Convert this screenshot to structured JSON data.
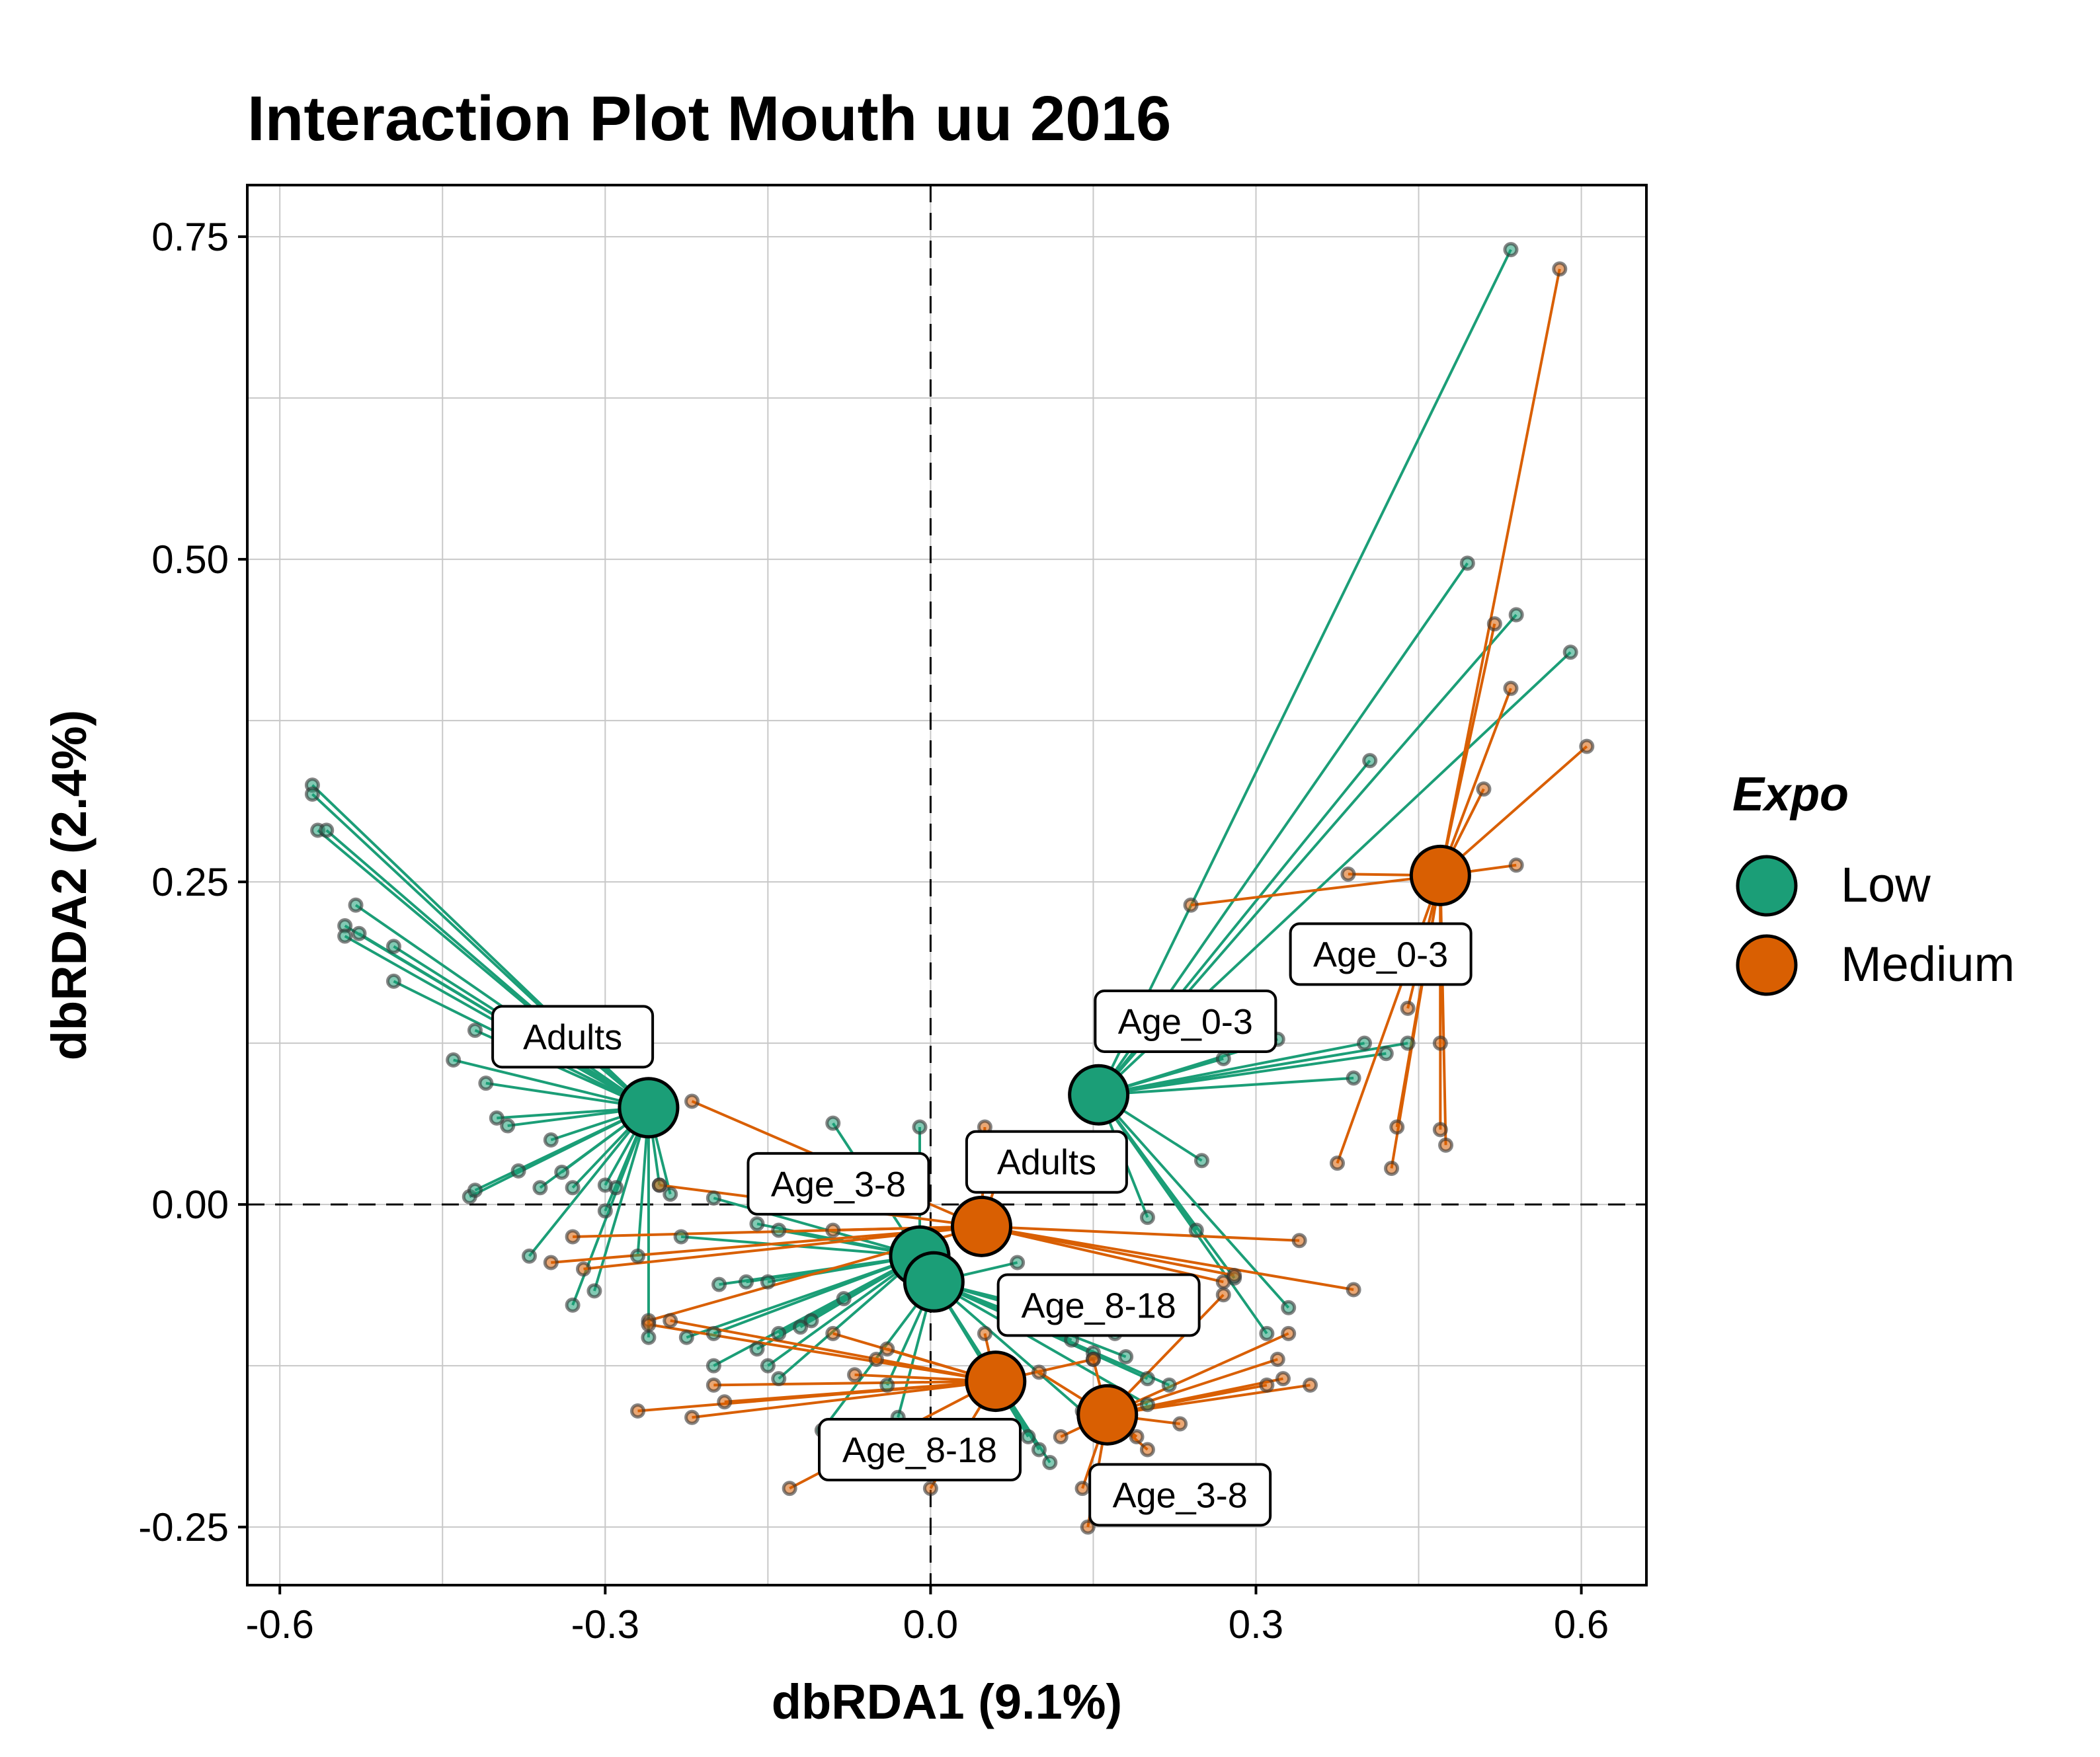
{
  "chart_data": {
    "type": "scatter",
    "title": "Interaction Plot Mouth uu 2016",
    "xlabel": "dbRDA1 (9.1%)",
    "ylabel": "dbRDA2 (2.4%)",
    "xlim": [
      -0.63,
      0.66
    ],
    "ylim": [
      -0.295,
      0.79
    ],
    "x_ticks": [
      -0.6,
      -0.3,
      0.0,
      0.3,
      0.6
    ],
    "x_tick_labels": [
      "-0.6",
      "-0.3",
      "0.0",
      "0.3",
      "0.6"
    ],
    "y_ticks": [
      -0.25,
      0.0,
      0.25,
      0.5,
      0.75
    ],
    "y_tick_labels": [
      "-0.25",
      "0.00",
      "0.25",
      "0.50",
      "0.75"
    ],
    "grid": true,
    "reference_lines": {
      "x": 0,
      "y": 0,
      "style": "dashed"
    },
    "legend": {
      "title": "Expo",
      "placement": "right",
      "entries": [
        {
          "label": "Low",
          "color": "#1b9e77"
        },
        {
          "label": "Medium",
          "color": "#d95f02"
        }
      ]
    },
    "series": [
      {
        "name": "Low",
        "color": "#1b9e77",
        "groups": [
          {
            "label": "Adults",
            "centroid": [
              -0.26,
              0.075
            ],
            "points": [
              [
                -0.57,
                0.325
              ],
              [
                -0.57,
                0.318
              ],
              [
                -0.565,
                0.29
              ],
              [
                -0.557,
                0.29
              ],
              [
                -0.53,
                0.232
              ],
              [
                -0.54,
                0.216
              ],
              [
                -0.54,
                0.208
              ],
              [
                -0.527,
                0.21
              ],
              [
                -0.495,
                0.2
              ],
              [
                -0.495,
                0.173
              ],
              [
                -0.42,
                0.135
              ],
              [
                -0.44,
                0.112
              ],
              [
                -0.41,
                0.094
              ],
              [
                -0.4,
                0.067
              ],
              [
                -0.39,
                0.061
              ],
              [
                -0.38,
                0.026
              ],
              [
                -0.36,
                0.013
              ],
              [
                -0.425,
                0.006
              ],
              [
                -0.42,
                0.011
              ],
              [
                -0.35,
                0.05
              ],
              [
                -0.33,
                0.013
              ],
              [
                -0.29,
                0.013
              ],
              [
                -0.3,
                0.015
              ],
              [
                -0.25,
                0.015
              ],
              [
                -0.24,
                0.008
              ],
              [
                -0.37,
                -0.04
              ],
              [
                -0.27,
                -0.04
              ],
              [
                -0.33,
                -0.078
              ],
              [
                -0.31,
                -0.067
              ],
              [
                -0.34,
                0.025
              ],
              [
                -0.3,
                -0.005
              ],
              [
                -0.26,
                -0.103
              ]
            ]
          },
          {
            "label": "Age_0-3",
            "centroid": [
              0.155,
              0.085
            ],
            "points": [
              [
                0.535,
                0.74
              ],
              [
                0.495,
                0.497
              ],
              [
                0.54,
                0.457
              ],
              [
                0.59,
                0.428
              ],
              [
                0.405,
                0.344
              ],
              [
                0.4,
                0.125
              ],
              [
                0.42,
                0.117
              ],
              [
                0.44,
                0.125
              ],
              [
                0.39,
                0.098
              ],
              [
                0.32,
                0.128
              ],
              [
                0.27,
                0.113
              ],
              [
                0.25,
                0.034
              ],
              [
                0.2,
                -0.01
              ],
              [
                0.245,
                -0.02
              ],
              [
                0.28,
                -0.057
              ],
              [
                0.31,
                -0.1
              ],
              [
                0.33,
                -0.08
              ]
            ]
          },
          {
            "label": "Age_3-8",
            "centroid": [
              -0.01,
              -0.04
            ],
            "points": [
              [
                -0.09,
                0.063
              ],
              [
                -0.01,
                0.06
              ],
              [
                -0.2,
                0.005
              ],
              [
                -0.23,
                -0.025
              ],
              [
                -0.16,
                -0.015
              ],
              [
                -0.14,
                -0.02
              ],
              [
                -0.195,
                -0.062
              ],
              [
                -0.17,
                -0.06
              ],
              [
                -0.15,
                -0.06
              ],
              [
                -0.11,
                -0.09
              ],
              [
                -0.12,
                -0.095
              ],
              [
                -0.14,
                -0.1
              ],
              [
                -0.16,
                -0.112
              ],
              [
                -0.15,
                -0.125
              ],
              [
                -0.14,
                -0.135
              ],
              [
                -0.08,
                -0.073
              ],
              [
                -0.2,
                -0.1
              ],
              [
                -0.225,
                -0.103
              ],
              [
                -0.2,
                -0.125
              ]
            ]
          },
          {
            "label": "Age_8-18",
            "centroid": [
              0.003,
              -0.06
            ],
            "points": [
              [
                0.08,
                -0.045
              ],
              [
                0.1,
                -0.08
              ],
              [
                0.13,
                -0.105
              ],
              [
                0.15,
                -0.115
              ],
              [
                0.2,
                -0.135
              ],
              [
                0.2,
                -0.155
              ],
              [
                0.22,
                -0.14
              ],
              [
                0.14,
                -0.16
              ],
              [
                0.1,
                -0.19
              ],
              [
                0.11,
                -0.2
              ],
              [
                0.09,
                -0.18
              ],
              [
                0.07,
                -0.15
              ],
              [
                -0.1,
                -0.175
              ],
              [
                -0.03,
                -0.165
              ],
              [
                -0.04,
                -0.14
              ],
              [
                0.17,
                -0.1
              ],
              [
                0.18,
                -0.118
              ]
            ]
          }
        ]
      },
      {
        "name": "Medium",
        "color": "#d95f02",
        "groups": [
          {
            "label": "Age_0-3",
            "centroid": [
              0.47,
              0.255
            ],
            "points": [
              [
                0.58,
                0.725
              ],
              [
                0.52,
                0.45
              ],
              [
                0.535,
                0.4
              ],
              [
                0.605,
                0.355
              ],
              [
                0.51,
                0.322
              ],
              [
                0.54,
                0.263
              ],
              [
                0.385,
                0.256
              ],
              [
                0.24,
                0.232
              ],
              [
                0.44,
                0.152
              ],
              [
                0.47,
                0.125
              ],
              [
                0.43,
                0.06
              ],
              [
                0.47,
                0.058
              ],
              [
                0.475,
                0.046
              ],
              [
                0.375,
                0.032
              ],
              [
                0.425,
                0.028
              ]
            ]
          },
          {
            "label": "Adults",
            "centroid": [
              0.047,
              -0.017
            ],
            "points": [
              [
                -0.22,
                0.08
              ],
              [
                -0.33,
                -0.025
              ],
              [
                -0.35,
                -0.045
              ],
              [
                -0.32,
                -0.05
              ],
              [
                -0.25,
                0.015
              ],
              [
                -0.26,
                -0.09
              ],
              [
                -0.09,
                -0.02
              ],
              [
                0.05,
                0.06
              ],
              [
                0.07,
                0.04
              ],
              [
                0.27,
                -0.06
              ],
              [
                0.39,
                -0.066
              ],
              [
                0.34,
                -0.028
              ],
              [
                0.28,
                -0.055
              ]
            ]
          },
          {
            "label": "Age_8-18",
            "centroid": [
              0.06,
              -0.137
            ],
            "points": [
              [
                -0.27,
                -0.16
              ],
              [
                -0.22,
                -0.165
              ],
              [
                -0.19,
                -0.153
              ],
              [
                -0.2,
                -0.14
              ],
              [
                -0.13,
                -0.22
              ],
              [
                -0.07,
                -0.132
              ],
              [
                -0.05,
                -0.12
              ],
              [
                -0.04,
                -0.112
              ],
              [
                0.0,
                -0.22
              ],
              [
                -0.09,
                -0.1
              ],
              [
                -0.24,
                -0.09
              ],
              [
                -0.26,
                -0.093
              ],
              [
                0.05,
                -0.1
              ],
              [
                0.15,
                -0.12
              ]
            ]
          },
          {
            "label": "Age_3-8",
            "centroid": [
              0.163,
              -0.163
            ],
            "points": [
              [
                0.31,
                -0.14
              ],
              [
                0.32,
                -0.12
              ],
              [
                0.325,
                -0.135
              ],
              [
                0.35,
                -0.14
              ],
              [
                0.33,
                -0.1
              ],
              [
                0.27,
                -0.07
              ],
              [
                0.23,
                -0.17
              ],
              [
                0.2,
                -0.19
              ],
              [
                0.19,
                -0.18
              ],
              [
                0.145,
                -0.25
              ],
              [
                0.14,
                -0.22
              ],
              [
                0.12,
                -0.18
              ],
              [
                0.1,
                -0.13
              ],
              [
                0.15,
                -0.12
              ]
            ]
          }
        ]
      }
    ],
    "annotations": [
      {
        "text": "Adults",
        "x": -0.33,
        "y": 0.13
      },
      {
        "text": "Age_0-3",
        "x": 0.235,
        "y": 0.142
      },
      {
        "text": "Age_0-3",
        "x": 0.415,
        "y": 0.194
      },
      {
        "text": "Age_3-8",
        "x": -0.085,
        "y": 0.016
      },
      {
        "text": "Adults",
        "x": 0.107,
        "y": 0.033
      },
      {
        "text": "Age_8-18",
        "x": 0.155,
        "y": -0.078
      },
      {
        "text": "Age_8-18",
        "x": -0.01,
        "y": -0.19
      },
      {
        "text": "Age_3-8",
        "x": 0.23,
        "y": -0.225
      }
    ]
  }
}
